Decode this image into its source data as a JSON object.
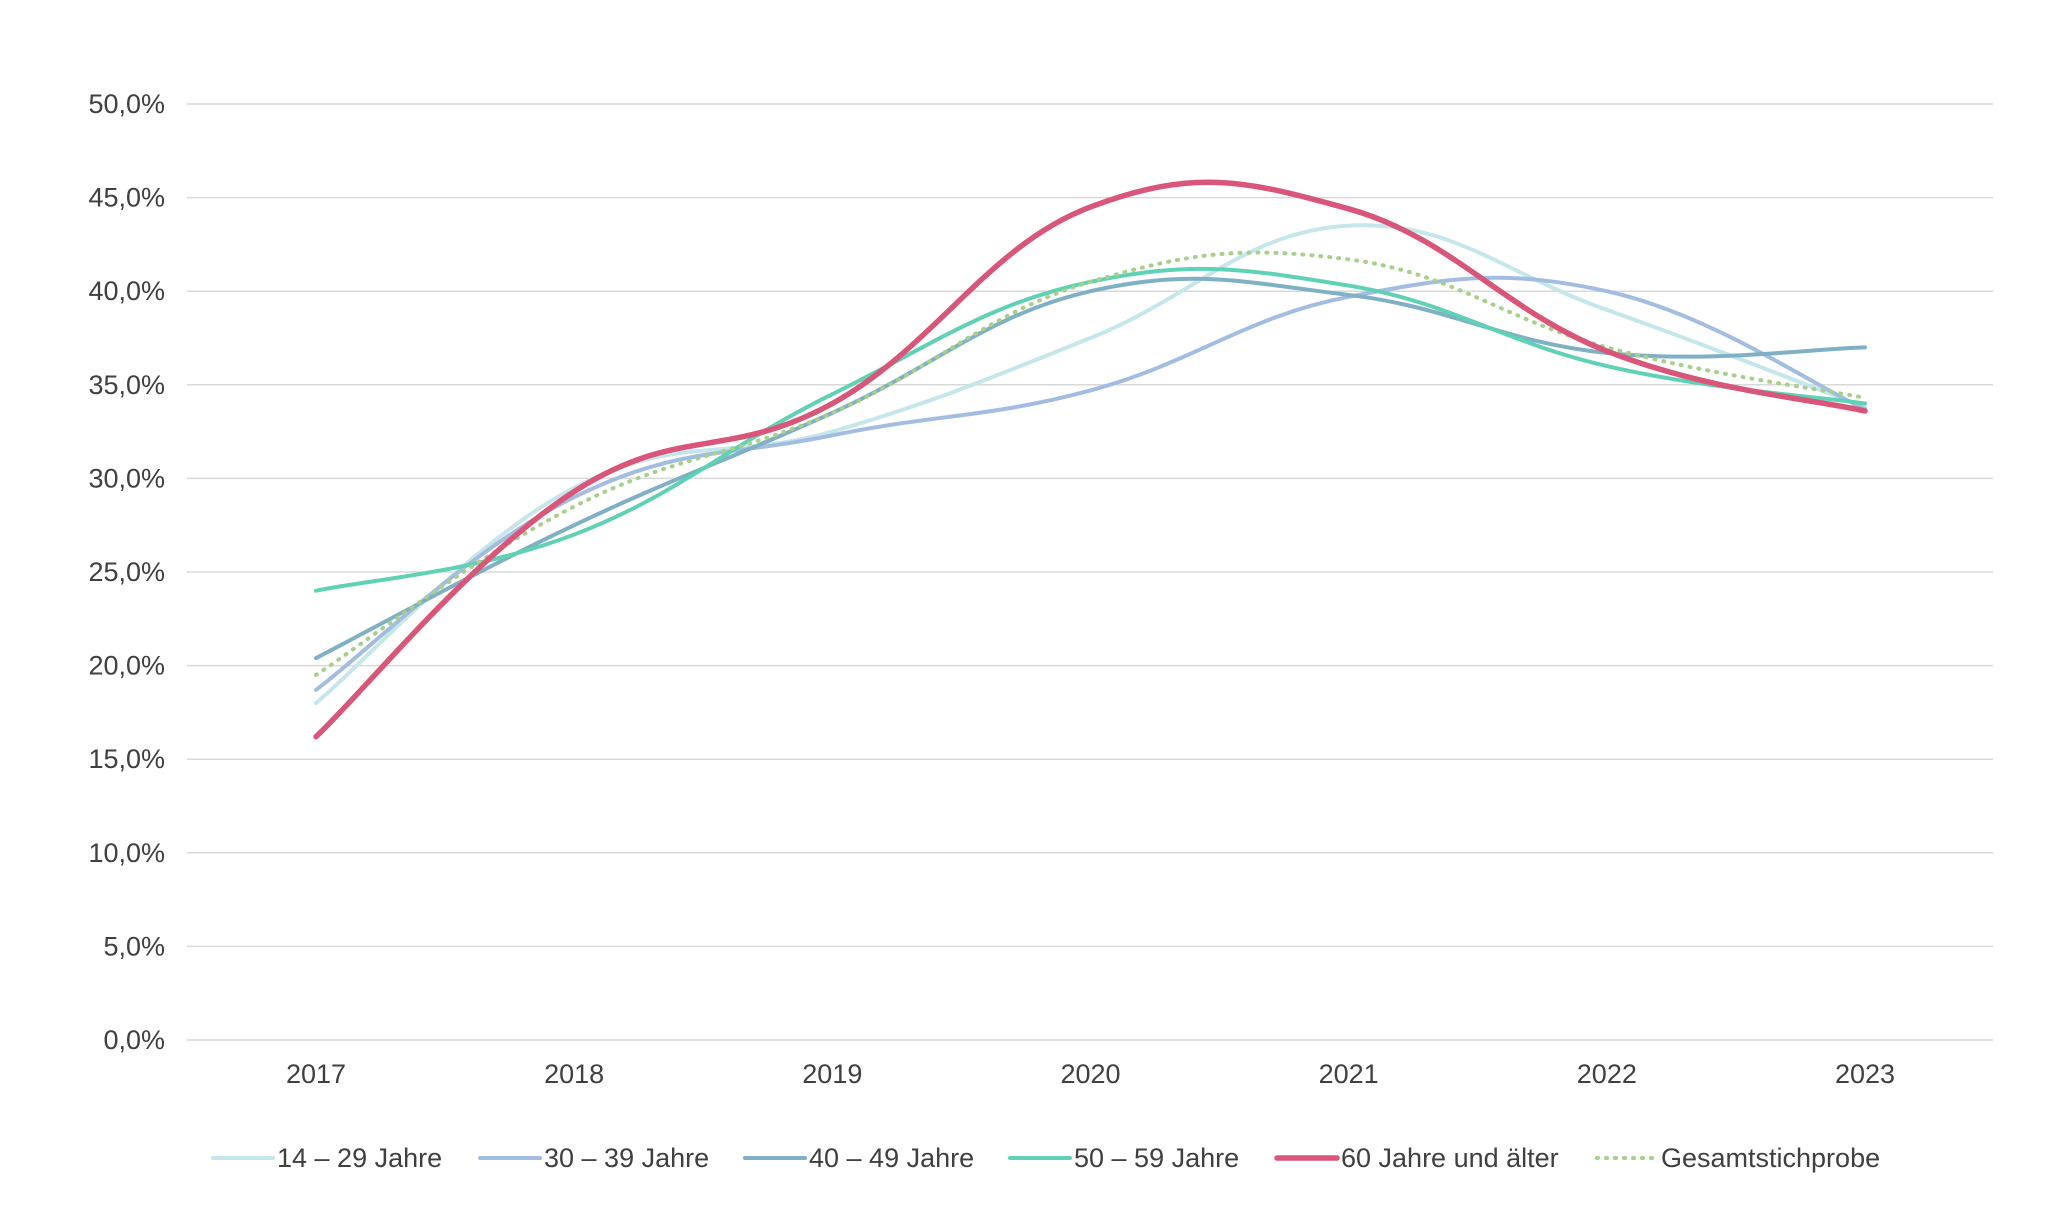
{
  "chart_data": {
    "type": "line",
    "title": "",
    "xlabel": "",
    "ylabel": "",
    "categories": [
      "2017",
      "2018",
      "2019",
      "2020",
      "2021",
      "2022",
      "2023"
    ],
    "y_ticks": [
      "0,0%",
      "5,0%",
      "10,0%",
      "15,0%",
      "20,0%",
      "25,0%",
      "30,0%",
      "35,0%",
      "40,0%",
      "45,0%",
      "50,0%"
    ],
    "ylim": [
      0,
      50
    ],
    "grid": "horizontal",
    "legend_position": "bottom",
    "series": [
      {
        "name": "14 – 29 Jahre",
        "values": [
          18.0,
          29.5,
          32.5,
          37.5,
          43.5,
          39.0,
          33.8
        ],
        "color": "#c5e6ea",
        "style": "solid"
      },
      {
        "name": "30 – 39 Jahre",
        "values": [
          18.7,
          29.0,
          32.3,
          34.7,
          39.7,
          40.0,
          33.7
        ],
        "color": "#a3bde0",
        "style": "solid"
      },
      {
        "name": "40 – 49 Jahre",
        "values": [
          20.4,
          27.5,
          33.5,
          40.0,
          39.8,
          36.7,
          37.0
        ],
        "color": "#7fb0c3",
        "style": "solid"
      },
      {
        "name": "50 – 59 Jahre",
        "values": [
          24.0,
          27.0,
          34.5,
          40.5,
          40.3,
          36.0,
          34.0
        ],
        "color": "#5fd1b4",
        "style": "solid"
      },
      {
        "name": "60 Jahre und älter",
        "values": [
          16.2,
          29.3,
          34.0,
          44.5,
          44.4,
          36.8,
          33.6
        ],
        "color": "#d9567a",
        "style": "solid"
      },
      {
        "name": "Gesamtstichprobe",
        "values": [
          19.5,
          28.5,
          33.5,
          40.5,
          41.7,
          37.0,
          34.3
        ],
        "color": "#a9cf8c",
        "style": "dotted"
      }
    ]
  }
}
